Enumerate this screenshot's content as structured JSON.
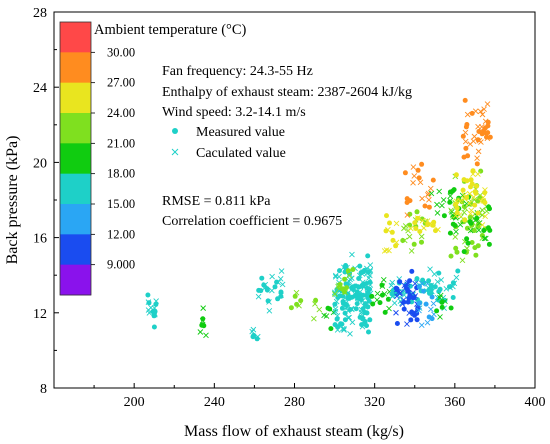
{
  "chart_data": {
    "type": "scatter",
    "xlabel": "Mass flow of exhaust steam (kg/s)",
    "ylabel": "Back pressure (kPa)",
    "xlim": [
      160,
      400
    ],
    "ylim": [
      8,
      28
    ],
    "xticks": [
      200,
      240,
      280,
      320,
      360,
      400
    ],
    "yticks": [
      8,
      12,
      16,
      20,
      24,
      28
    ],
    "grid": false,
    "colorbar": {
      "title": "Ambient temperature (°C)",
      "tick_labels": [
        "30.00",
        "27.00",
        "24.00",
        "21.00",
        "18.00",
        "15.00",
        "12.00",
        "9.000"
      ],
      "colors": [
        "#ff4848",
        "#ff8c1f",
        "#e9e51f",
        "#7fe01f",
        "#10cc10",
        "#1ed0c8",
        "#2aa6f4",
        "#1a4cf0",
        "#8a12ec"
      ]
    },
    "annotations": [
      "Fan frequency: 24.3-55 Hz",
      "Enthalpy of exhaust steam: 2387-2604 kJ/kg",
      "Wind speed: 3.2-14.1 m/s",
      "RMSE = 0.811 kPa",
      "Correlation coefficient = 0.9675"
    ],
    "legend": {
      "position": "top-center",
      "entries": [
        {
          "label": "Measured value",
          "marker": "circle"
        },
        {
          "label": "Caculated value",
          "marker": "x"
        }
      ]
    },
    "clusters": [
      {
        "x": [
          206,
          211
        ],
        "y": [
          10.8,
          13.5
        ],
        "color": "#1ed0c8",
        "n": 16
      },
      {
        "x": [
          233,
          236
        ],
        "y": [
          10.1,
          13.2
        ],
        "color": "#10cc10",
        "n": 8
      },
      {
        "x": [
          255,
          262
        ],
        "y": [
          9.9,
          12.2
        ],
        "color": "#1ed0c8",
        "n": 6
      },
      {
        "x": [
          262,
          276
        ],
        "y": [
          11.8,
          14.5
        ],
        "color": "#1ed0c8",
        "n": 24
      },
      {
        "x": [
          276,
          296
        ],
        "y": [
          11.2,
          13.6
        ],
        "color": "#7fe01f",
        "n": 10
      },
      {
        "x": [
          292,
          300
        ],
        "y": [
          11.0,
          13.0
        ],
        "color": "#10cc10",
        "n": 6
      },
      {
        "x": [
          300,
          318
        ],
        "y": [
          10.6,
          15.2
        ],
        "color": "#1ed0c8",
        "n": 160
      },
      {
        "x": [
          300,
          310
        ],
        "y": [
          12.5,
          14.6
        ],
        "color": "#7fe01f",
        "n": 14
      },
      {
        "x": [
          318,
          328
        ],
        "y": [
          11.8,
          14.2
        ],
        "color": "#10cc10",
        "n": 14
      },
      {
        "x": [
          325,
          333
        ],
        "y": [
          15.2,
          17.5
        ],
        "color": "#e9e51f",
        "n": 12
      },
      {
        "x": [
          328,
          345
        ],
        "y": [
          12.2,
          14.0
        ],
        "color": "#1ed0c8",
        "n": 34
      },
      {
        "x": [
          330,
          342
        ],
        "y": [
          11.0,
          14.5
        ],
        "color": "#1a4cf0",
        "n": 46
      },
      {
        "x": [
          334,
          346
        ],
        "y": [
          15.0,
          17.8
        ],
        "color": "#7fe01f",
        "n": 18
      },
      {
        "x": [
          335,
          350
        ],
        "y": [
          17.0,
          20.2
        ],
        "color": "#ff8c1f",
        "n": 20
      },
      {
        "x": [
          338,
          352
        ],
        "y": [
          15.8,
          17.6
        ],
        "color": "#e9e51f",
        "n": 16
      },
      {
        "x": [
          342,
          350
        ],
        "y": [
          11.2,
          14.0
        ],
        "color": "#2aa6f4",
        "n": 16
      },
      {
        "x": [
          345,
          362
        ],
        "y": [
          12.0,
          14.6
        ],
        "color": "#1ed0c8",
        "n": 34
      },
      {
        "x": [
          348,
          362
        ],
        "y": [
          16.0,
          19.2
        ],
        "color": "#10cc10",
        "n": 18
      },
      {
        "x": [
          350,
          360
        ],
        "y": [
          11.5,
          13.2
        ],
        "color": "#10cc10",
        "n": 8
      },
      {
        "x": [
          358,
          376
        ],
        "y": [
          14.5,
          19.8
        ],
        "color": "#7fe01f",
        "n": 60
      },
      {
        "x": [
          358,
          378
        ],
        "y": [
          15.0,
          18.6
        ],
        "color": "#10cc10",
        "n": 30
      },
      {
        "x": [
          360,
          376
        ],
        "y": [
          16.5,
          19.8
        ],
        "color": "#e9e51f",
        "n": 40
      },
      {
        "x": [
          364,
          378
        ],
        "y": [
          19.8,
          23.6
        ],
        "color": "#ff8c1f",
        "n": 40
      }
    ]
  }
}
